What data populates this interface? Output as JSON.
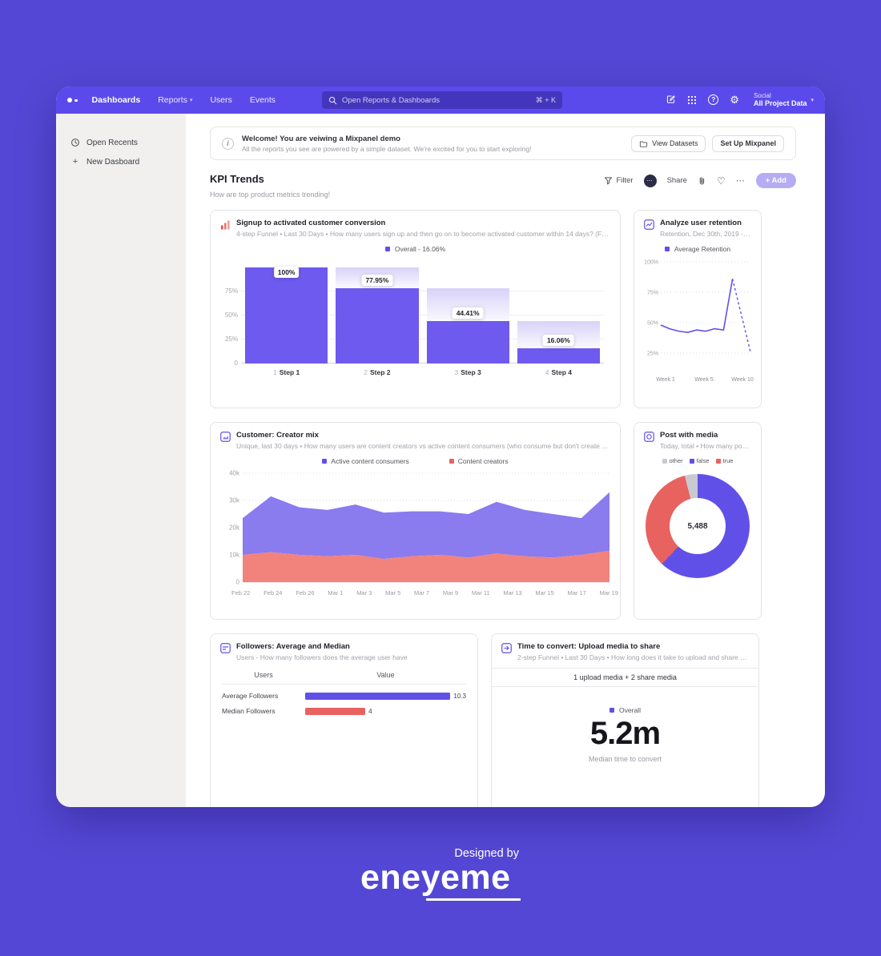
{
  "icons": {
    "chevron_down": "▾",
    "gear": "⚙",
    "heart": "♡",
    "ellipsis": "⋯",
    "info": "i",
    "question": "?"
  },
  "nav": {
    "items": [
      {
        "label": "Dashboards",
        "active": true
      },
      {
        "label": "Reports",
        "chevron": true
      },
      {
        "label": "Users"
      },
      {
        "label": "Events"
      }
    ],
    "search": {
      "placeholder": "Open Reports & Dashboards",
      "shortcut": "⌘ + K"
    },
    "project": {
      "org": "Social",
      "name": "All Project Data"
    }
  },
  "sidebar": {
    "items": [
      {
        "label": "Open Recents"
      },
      {
        "label": "New Dasboard"
      }
    ]
  },
  "banner": {
    "title": "Welcome! You are veiwing a Mixpanel demo",
    "subtitle": "All the reports you see are powered by a simple dataset. We're excited for you to start exploring!",
    "buttons": {
      "view_datasets": "View Datasets",
      "set_up": "Set Up Mixpanel"
    }
  },
  "page": {
    "title": "KPI Trends",
    "subtitle": "How are top product metrics trending!"
  },
  "toolbar": {
    "filter": "Filter",
    "share": "Share",
    "add": "+ Add"
  },
  "cards": {
    "funnel": {
      "title": "Signup to activated customer conversion",
      "subtitle": "4-step Funnel • Last 30 Days • How many users sign up and then go on to become activated customer within 14 days? (Foll...",
      "legend": "Overall - 16.06%",
      "y_ticks": [
        {
          "label": "75%",
          "value": 75
        },
        {
          "label": "50%",
          "value": 50
        },
        {
          "label": "25%",
          "value": 25
        },
        {
          "label": "0",
          "value": 0
        }
      ],
      "steps": [
        {
          "index": "1",
          "label": "Step 1",
          "pct": "100%",
          "value": 100
        },
        {
          "index": "2",
          "label": "Step 2",
          "pct": "77.95%",
          "value": 77.95
        },
        {
          "index": "3",
          "label": "Step 3",
          "pct": "44.41%",
          "value": 44.41
        },
        {
          "index": "4",
          "label": "Step 4",
          "pct": "16.06%",
          "value": 16.06
        }
      ]
    },
    "retention": {
      "title": "Analyze user retention",
      "subtitle": "Retention, Dec 30th, 2019 - Mar 2...",
      "legend": "Average Retention",
      "y_ticks": [
        {
          "label": "100%",
          "value": 100
        },
        {
          "label": "75%",
          "value": 75
        },
        {
          "label": "50%",
          "value": 50
        },
        {
          "label": "25%",
          "value": 25
        }
      ],
      "x_labels": [
        "Week 1",
        "Week 5",
        "Week 10"
      ],
      "values": [
        48,
        45,
        43,
        42,
        44,
        43,
        45,
        44,
        86,
        56,
        26
      ],
      "dashed_from": 8
    },
    "mix": {
      "title": "Customer: Creator mix",
      "subtitle": "Unique, last 30 days • How many users are content creators vs active content consumers (who consume but don't create ...",
      "legend": [
        {
          "label": "Active content consumers",
          "color": "#6150e8"
        },
        {
          "label": "Content creators",
          "color": "#e8625f"
        }
      ],
      "area_colors": {
        "consumers": "#8a7bef",
        "creators": "#f2827c"
      },
      "y_ticks": [
        {
          "label": "40k",
          "value": 40
        },
        {
          "label": "30k",
          "value": 30
        },
        {
          "label": "20k",
          "value": 20
        },
        {
          "label": "10k",
          "value": 10
        },
        {
          "label": "0",
          "value": 0
        }
      ],
      "y_max": 40,
      "x_labels": [
        "Feb 22",
        "Feb 24",
        "Feb 26",
        "Mar 1",
        "Mar 3",
        "Mar 5",
        "Mar 7",
        "Mar 9",
        "Mar 11",
        "Mar 13",
        "Mar 15",
        "Mar 17",
        "Mar 19"
      ],
      "totals": [
        23.5,
        31.5,
        27.5,
        26.5,
        28.5,
        25.5,
        26,
        26,
        25,
        29.5,
        26.5,
        25,
        23.5,
        33
      ],
      "creators": [
        10,
        11,
        10,
        9.5,
        10,
        8.5,
        9.5,
        10,
        9,
        10.5,
        9.5,
        9,
        10,
        11.5
      ]
    },
    "donut": {
      "title": "Post with media",
      "subtitle": "Today, total • How many posts have...",
      "center": "5,488",
      "segments": [
        {
          "label": "other",
          "pct": 4,
          "color": "#c9c9d2"
        },
        {
          "label": "false",
          "pct": 62,
          "color": "#6150e8"
        },
        {
          "label": "true",
          "pct": 34,
          "color": "#e8625f"
        }
      ]
    },
    "followers": {
      "title": "Followers: Average and Median",
      "subtitle": "Users - How many followers does the average user have",
      "col1": "Users",
      "col2": "Value",
      "max": 10.7,
      "rows": [
        {
          "label": "Average Followers",
          "value": 10.3,
          "display": "10.3",
          "color": "#6150e8"
        },
        {
          "label": "Median Followers",
          "value": 4,
          "display": "4",
          "color": "#e8625f"
        }
      ]
    },
    "time": {
      "title": "Time to convert: Upload media to share",
      "subtitle": "2-step Funnel • Last 30 Days • How long does it take to upload and share med...",
      "strip": "1 upload media + 2 share media",
      "legend": "Overall",
      "value": "5.2m",
      "caption": "Median time to convert"
    }
  },
  "footer": {
    "line1": "Designed by",
    "logo": "eneyeme"
  },
  "colors": {
    "accent": "#6150e8",
    "red": "#e8625f",
    "navbar": "#5b4aeb",
    "background": "#5447d5",
    "add_button": "#b5acf4"
  }
}
